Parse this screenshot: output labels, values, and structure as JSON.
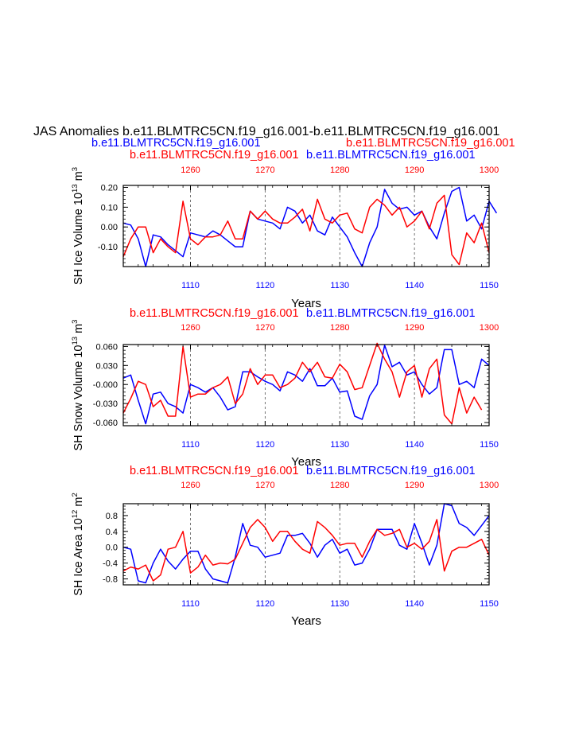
{
  "title": "JAS Anomalies b.e11.BLMTRC5CN.f19_g16.001-b.e11.BLMTRC5CN.f19_g16.001",
  "subtitle_blue": "b.e11.BLMTRC5CN.f19_g16.001",
  "subtitle_red": "b.e11.BLMTRC5CN.f19_g16.001",
  "colors": {
    "blue": "#0000ff",
    "red": "#ff0000",
    "axis": "#000000",
    "grid": "#555555"
  },
  "chart_data": [
    {
      "type": "line",
      "ylabel": "SH Ice Volume 10",
      "ylabel_exp": "13",
      "ylabel_unit": " m",
      "ylabel_unit_exp": "3",
      "xlabel": "Years",
      "left_label": "b.e11.BLMTRC5CN.f19_g16.001",
      "right_label": "b.e11.BLMTRC5CN.f19_g16.001",
      "ylim": [
        -0.2,
        0.21
      ],
      "yticks": [
        -0.1,
        0.0,
        0.1,
        0.2
      ],
      "ytick_labels": [
        "-0.10",
        "0.00",
        "0.10",
        "0.20"
      ],
      "xlim_bottom": [
        1101,
        1150
      ],
      "xticks_bottom": [
        1110,
        1120,
        1130,
        1140,
        1150
      ],
      "xlim_top": [
        1251,
        1300
      ],
      "xticks_top": [
        1260,
        1270,
        1280,
        1290,
        1300
      ],
      "grid": "vertical dashed",
      "series": [
        {
          "name": "b.e11.BLMTRC5CN.f19_g16.001",
          "color": "blue",
          "axis": "bottom",
          "x_start": 1101,
          "values": [
            0.02,
            0.01,
            -0.06,
            -0.2,
            -0.04,
            -0.05,
            -0.09,
            -0.12,
            -0.15,
            -0.03,
            -0.04,
            -0.05,
            -0.02,
            -0.04,
            -0.07,
            -0.1,
            -0.1,
            0.08,
            0.04,
            0.03,
            0.02,
            -0.01,
            0.1,
            0.08,
            0.02,
            0.06,
            -0.02,
            -0.04,
            0.05,
            0.0,
            -0.05,
            -0.13,
            -0.2,
            -0.08,
            0.0,
            0.19,
            0.12,
            0.09,
            0.1,
            0.06,
            0.08,
            0.0,
            -0.06,
            0.07,
            0.18,
            0.2,
            0.03,
            0.06,
            -0.01,
            0.13,
            0.07
          ]
        },
        {
          "name": "b.e11.BLMTRC5CN.f19_g16.001",
          "color": "red",
          "axis": "top",
          "x_start": 1251,
          "values": [
            -0.15,
            -0.06,
            0.0,
            0.0,
            -0.13,
            -0.06,
            -0.1,
            -0.13,
            0.13,
            -0.06,
            -0.09,
            -0.05,
            -0.05,
            -0.04,
            0.03,
            -0.06,
            -0.06,
            0.08,
            0.04,
            0.08,
            0.04,
            0.02,
            0.02,
            0.05,
            0.09,
            -0.02,
            0.14,
            0.04,
            0.02,
            0.06,
            0.07,
            -0.01,
            -0.03,
            0.1,
            0.14,
            0.11,
            0.06,
            0.1,
            0.0,
            0.03,
            0.08,
            -0.01,
            0.12,
            0.16,
            -0.14,
            -0.19,
            -0.03,
            -0.08,
            0.02,
            -0.13
          ]
        }
      ]
    },
    {
      "type": "line",
      "ylabel": "SH Snow Volume 10",
      "ylabel_exp": "13",
      "ylabel_unit": " m",
      "ylabel_unit_exp": "3",
      "xlabel": "Years",
      "left_label": "b.e11.BLMTRC5CN.f19_g16.001",
      "right_label": "b.e11.BLMTRC5CN.f19_g16.001",
      "ylim": [
        -0.065,
        0.063
      ],
      "yticks": [
        -0.06,
        -0.03,
        0.0,
        0.03,
        0.06
      ],
      "ytick_labels": [
        "-0.060",
        "-0.030",
        "-0.000",
        "0.030",
        "0.060"
      ],
      "xlim_bottom": [
        1101,
        1150
      ],
      "xticks_bottom": [
        1110,
        1120,
        1130,
        1140,
        1150
      ],
      "xlim_top": [
        1251,
        1300
      ],
      "xticks_top": [
        1260,
        1270,
        1280,
        1290,
        1300
      ],
      "grid": "vertical dashed",
      "series": [
        {
          "name": "b.e11.BLMTRC5CN.f19_g16.001",
          "color": "blue",
          "axis": "bottom",
          "x_start": 1101,
          "values": [
            0.01,
            0.015,
            -0.025,
            -0.062,
            -0.015,
            -0.012,
            -0.03,
            -0.035,
            -0.045,
            0.0,
            -0.005,
            -0.012,
            -0.005,
            -0.02,
            -0.04,
            -0.035,
            0.02,
            0.02,
            0.012,
            0.005,
            0.0,
            -0.01,
            0.02,
            0.015,
            0.005,
            0.025,
            -0.002,
            -0.002,
            0.01,
            -0.012,
            -0.01,
            -0.05,
            -0.055,
            -0.018,
            0.0,
            0.062,
            0.028,
            0.035,
            0.015,
            0.02,
            0.0,
            -0.015,
            -0.005,
            0.055,
            0.055,
            0.0,
            0.005,
            -0.005,
            0.04,
            0.03
          ]
        },
        {
          "name": "b.e11.BLMTRC5CN.f19_g16.001",
          "color": "red",
          "axis": "top",
          "x_start": 1251,
          "values": [
            -0.045,
            -0.022,
            0.005,
            0.0,
            -0.035,
            -0.025,
            -0.05,
            -0.05,
            0.06,
            -0.02,
            -0.015,
            -0.015,
            -0.005,
            0.0,
            0.012,
            -0.03,
            -0.015,
            0.025,
            0.0,
            0.015,
            0.015,
            -0.005,
            0.0,
            0.01,
            0.035,
            0.02,
            0.035,
            0.012,
            0.01,
            0.032,
            0.02,
            -0.008,
            -0.005,
            0.03,
            0.065,
            0.04,
            0.02,
            -0.02,
            0.02,
            0.03,
            -0.02,
            0.025,
            0.04,
            -0.048,
            -0.062,
            -0.005,
            -0.045,
            -0.02,
            -0.04
          ]
        }
      ]
    },
    {
      "type": "line",
      "ylabel": "SH Ice Area 10",
      "ylabel_exp": "12",
      "ylabel_unit": " m",
      "ylabel_unit_exp": "2",
      "xlabel": "Years",
      "left_label": "b.e11.BLMTRC5CN.f19_g16.001",
      "right_label": "b.e11.BLMTRC5CN.f19_g16.001",
      "ylim": [
        -0.95,
        1.1
      ],
      "yticks": [
        -0.8,
        -0.4,
        0.0,
        0.4,
        0.8
      ],
      "ytick_labels": [
        "-0.8",
        "-0.4",
        "0.0",
        "0.4",
        "0.8"
      ],
      "xlim_bottom": [
        1101,
        1150
      ],
      "xticks_bottom": [
        1110,
        1120,
        1130,
        1140,
        1150
      ],
      "xlim_top": [
        1251,
        1300
      ],
      "xticks_top": [
        1260,
        1270,
        1280,
        1290,
        1300
      ],
      "grid": "vertical dashed",
      "series": [
        {
          "name": "b.e11.BLMTRC5CN.f19_g16.001",
          "color": "blue",
          "axis": "bottom",
          "x_start": 1101,
          "values": [
            0.0,
            -0.05,
            -0.85,
            -0.9,
            -0.4,
            -0.05,
            -0.35,
            -0.55,
            -0.3,
            -0.1,
            -0.1,
            -0.55,
            -0.8,
            -0.85,
            -0.9,
            -0.25,
            0.6,
            0.05,
            0.0,
            -0.25,
            -0.2,
            -0.15,
            0.3,
            0.3,
            0.35,
            0.1,
            -0.25,
            0.05,
            0.2,
            -0.15,
            -0.05,
            -0.45,
            -0.4,
            -0.05,
            0.45,
            0.45,
            0.45,
            0.05,
            -0.05,
            0.6,
            0.1,
            -0.45,
            0.05,
            1.1,
            1.05,
            0.6,
            0.5,
            0.3,
            0.55,
            0.8
          ]
        },
        {
          "name": "b.e11.BLMTRC5CN.f19_g16.001",
          "color": "red",
          "axis": "top",
          "x_start": 1251,
          "values": [
            -0.6,
            -0.5,
            -0.55,
            -0.45,
            -0.85,
            -0.7,
            -0.05,
            0.0,
            0.4,
            -0.65,
            -0.5,
            -0.2,
            -0.45,
            -0.4,
            -0.42,
            -0.3,
            0.1,
            0.5,
            0.7,
            0.5,
            0.15,
            0.4,
            0.4,
            0.15,
            -0.05,
            -0.15,
            0.65,
            0.5,
            0.3,
            0.05,
            0.1,
            0.1,
            -0.25,
            0.15,
            0.45,
            0.3,
            0.35,
            0.45,
            0.0,
            0.1,
            -0.05,
            0.15,
            0.7,
            -0.6,
            -0.1,
            0.0,
            0.0,
            0.1,
            0.2,
            -0.2
          ]
        }
      ]
    }
  ]
}
